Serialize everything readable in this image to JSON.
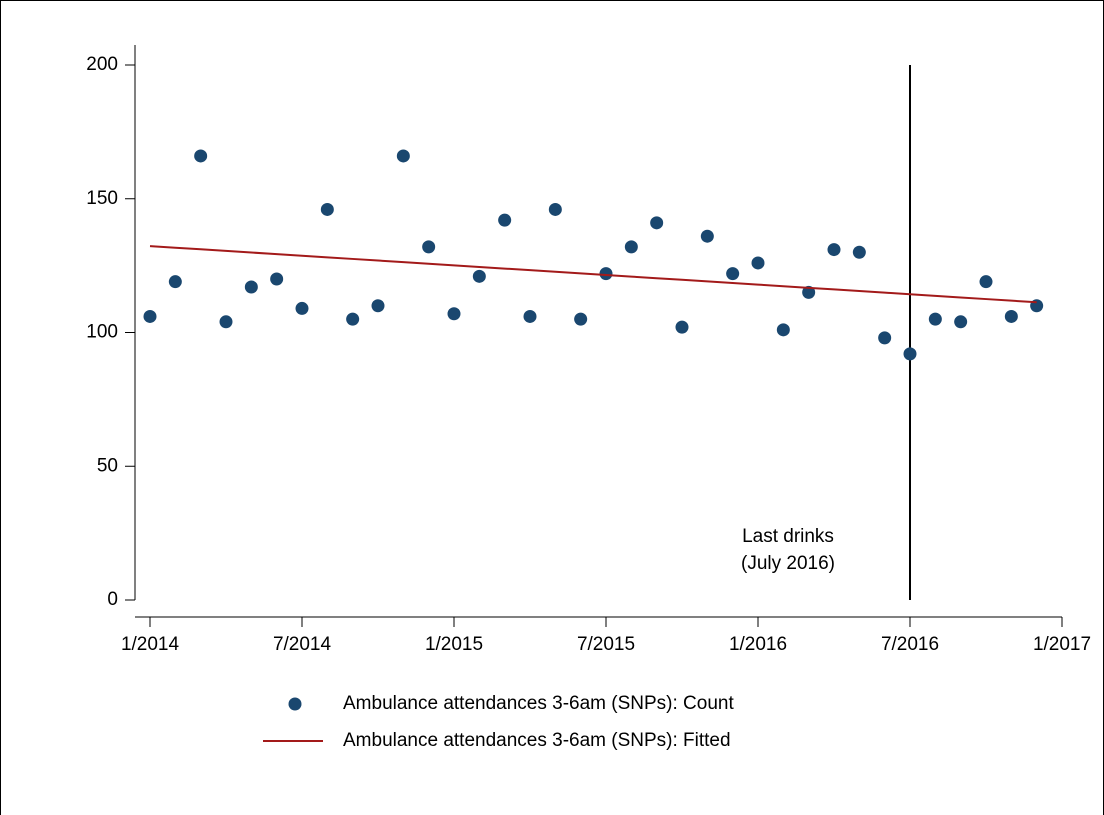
{
  "chart_data": {
    "type": "scatter",
    "x": [
      "1/2014",
      "2/2014",
      "3/2014",
      "4/2014",
      "5/2014",
      "6/2014",
      "7/2014",
      "8/2014",
      "9/2014",
      "10/2014",
      "11/2014",
      "12/2014",
      "1/2015",
      "2/2015",
      "3/2015",
      "4/2015",
      "5/2015",
      "6/2015",
      "7/2015",
      "8/2015",
      "9/2015",
      "10/2015",
      "11/2015",
      "12/2015",
      "1/2016",
      "2/2016",
      "3/2016",
      "4/2016",
      "5/2016",
      "6/2016",
      "7/2016",
      "8/2016",
      "9/2016",
      "10/2016",
      "11/2016",
      "12/2016"
    ],
    "series": [
      {
        "name": "Ambulance attendances 3-6am (SNPs): Count",
        "color": "#1a476f",
        "mode": "markers",
        "values": [
          106,
          119,
          166,
          104,
          117,
          120,
          109,
          146,
          105,
          110,
          166,
          132,
          107,
          121,
          142,
          106,
          146,
          105,
          122,
          132,
          141,
          102,
          136,
          122,
          126,
          101,
          115,
          131,
          130,
          98,
          92,
          105,
          104,
          119,
          106,
          110
        ]
      },
      {
        "name": "Ambulance attendances 3-6am (SNPs): Fitted",
        "color": "#a31a1a",
        "mode": "line",
        "values": [
          132.3,
          131.7,
          131.1,
          130.5,
          129.9,
          129.3,
          128.7,
          128.1,
          127.5,
          126.9,
          126.3,
          125.7,
          125.1,
          124.5,
          123.9,
          123.3,
          122.7,
          122.1,
          121.5,
          120.9,
          120.3,
          119.7,
          119.1,
          118.5,
          117.9,
          117.3,
          116.7,
          116.1,
          115.5,
          114.9,
          114.3,
          113.7,
          113.1,
          112.5,
          111.9,
          111.3
        ]
      }
    ],
    "xlim": [
      "1/2014",
      "1/2017"
    ],
    "xticks": [
      "1/2014",
      "7/2014",
      "1/2015",
      "7/2015",
      "1/2016",
      "7/2016",
      "1/2017"
    ],
    "ylim": [
      0,
      200
    ],
    "yticks": [
      0,
      50,
      100,
      150,
      200
    ],
    "vline": {
      "x": "7/2016",
      "color": "#000000",
      "annotation": [
        "Last drinks",
        "(July 2016)"
      ]
    },
    "legend": "bottom"
  }
}
